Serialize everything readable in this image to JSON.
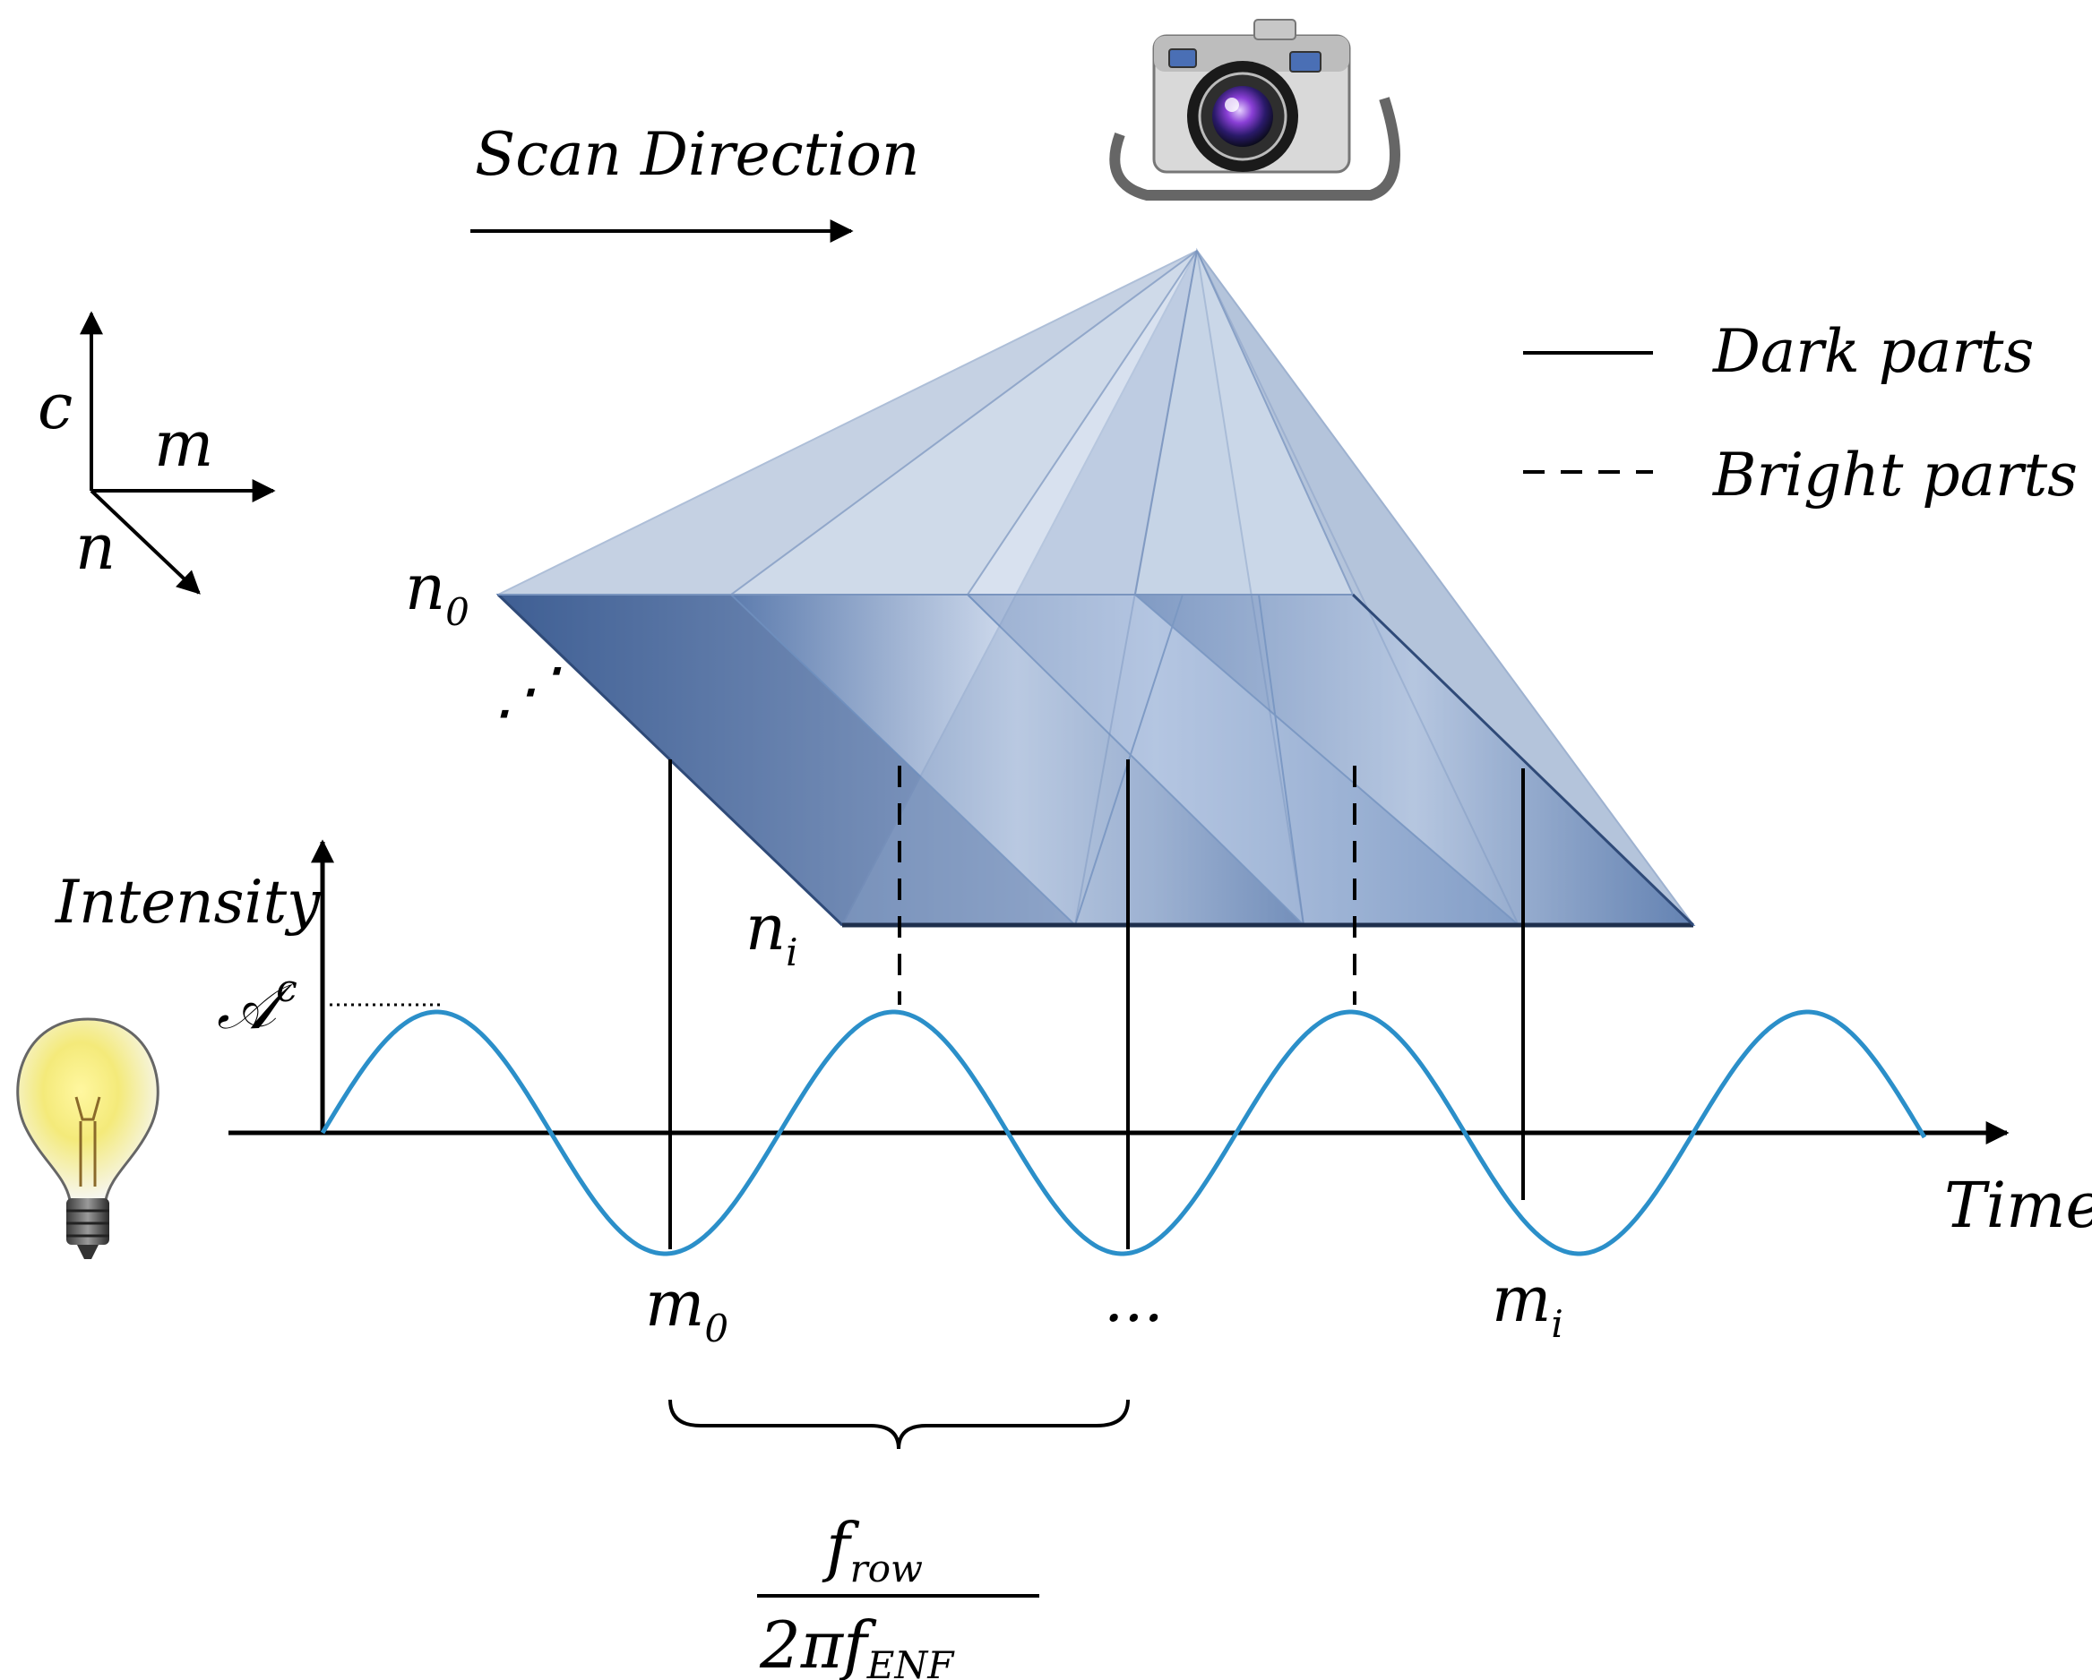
{
  "scan_direction": "Scan Direction",
  "axes": {
    "c": "c",
    "m": "m",
    "n": "n"
  },
  "legend": {
    "dark": "Dark parts",
    "bright": "Bright parts"
  },
  "row_labels": {
    "n0_base": "n",
    "n0_sub": "0",
    "ellipsis": "⋰",
    "ni_base": "n",
    "ni_sub": "i"
  },
  "plot": {
    "y_label": "Intensity",
    "amplitude_base": "𝒜",
    "amplitude_sup": "c",
    "x_label": "Time"
  },
  "time_marks": {
    "m0_base": "m",
    "m0_sub": "0",
    "mid": "...",
    "mi_base": "m",
    "mi_sub": "i"
  },
  "fraction": {
    "num_base": "f",
    "num_sub": "row",
    "den_base": "2πf",
    "den_sub": "ENF"
  },
  "icons": {
    "camera": "camera-icon",
    "bulb": "light-bulb-icon"
  },
  "colors": {
    "wave": "#2b8fc9",
    "prism_light": "#c8d6ea",
    "prism_dark": "#4a6fa5",
    "pyramid": "#9fb3d1"
  }
}
